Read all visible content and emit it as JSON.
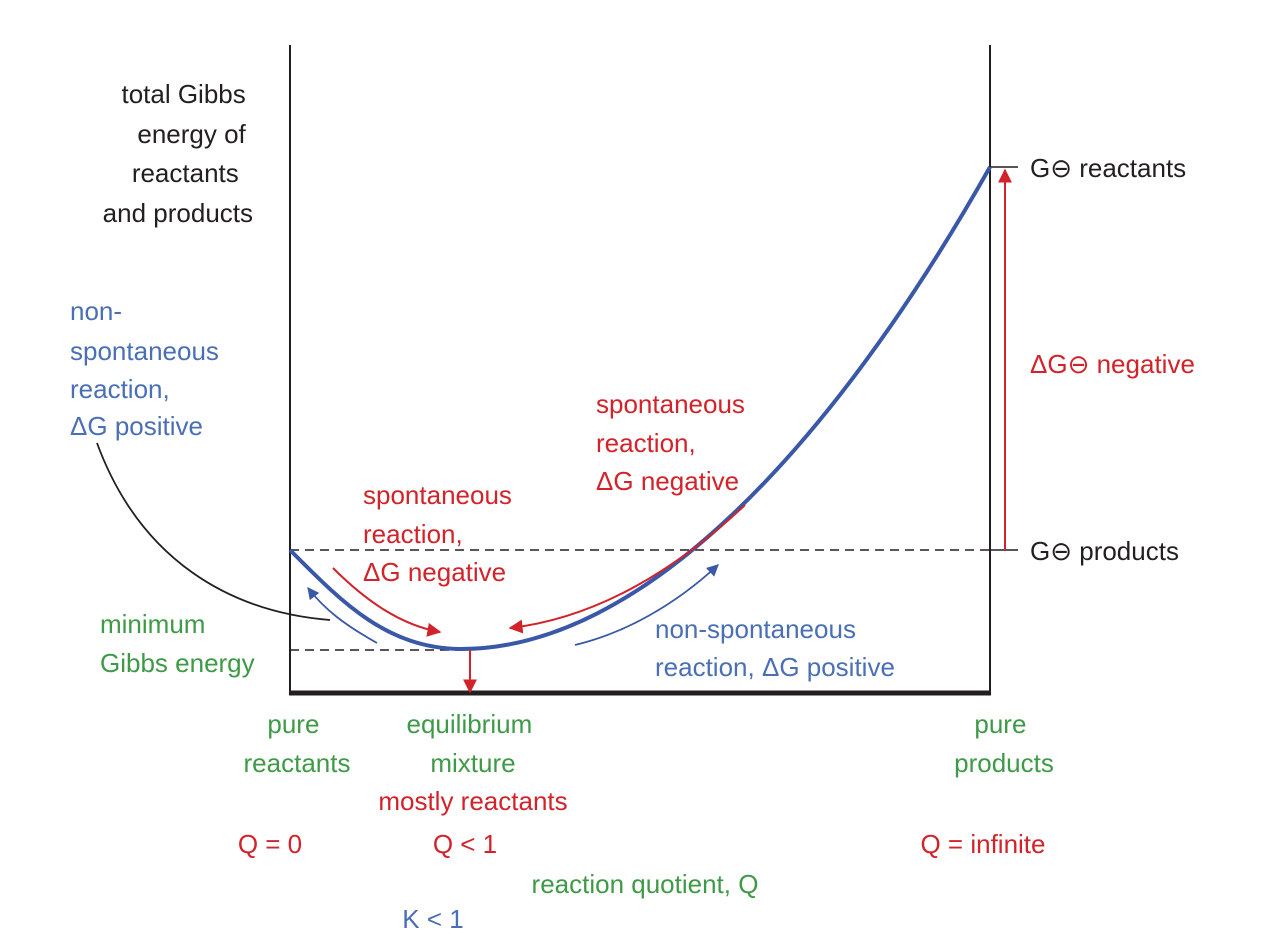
{
  "y_axis_label": [
    "total Gibbs",
    "energy of",
    "reactants",
    "and products"
  ],
  "g_reactants_label": "G⊖ reactants",
  "g_products_label": "G⊖ products",
  "delta_g_std_label": "ΔG⊖ negative",
  "left_blue_label": [
    "non-",
    "spontaneous",
    "reaction,",
    "ΔG positive"
  ],
  "min_gibbs_label": [
    "minimum",
    "Gibbs energy"
  ],
  "spont_left_label": [
    "spontaneous",
    "reaction,",
    "ΔG negative"
  ],
  "spont_right_label": [
    "spontaneous",
    "reaction,",
    "ΔG negative"
  ],
  "nonspont_right_label": [
    "non-spontaneous",
    "reaction, ΔG positive"
  ],
  "pure_reactants_label": [
    "pure",
    "reactants"
  ],
  "equilibrium_label": [
    "equilibrium",
    "mixture"
  ],
  "mostly_reactants_label": "mostly reactants",
  "pure_products_label": [
    "pure",
    "products"
  ],
  "q_zero": "Q = 0",
  "q_less_one": "Q < 1",
  "q_infinite": "Q = infinite",
  "x_axis_label": "reaction quotient, Q",
  "k_less_one": "K < 1",
  "colors": {
    "curve": "#3a58a8",
    "red": "#d2232a",
    "blue_text": "#4a6fb4",
    "green_text": "#3f9a47",
    "black": "#231f20"
  }
}
